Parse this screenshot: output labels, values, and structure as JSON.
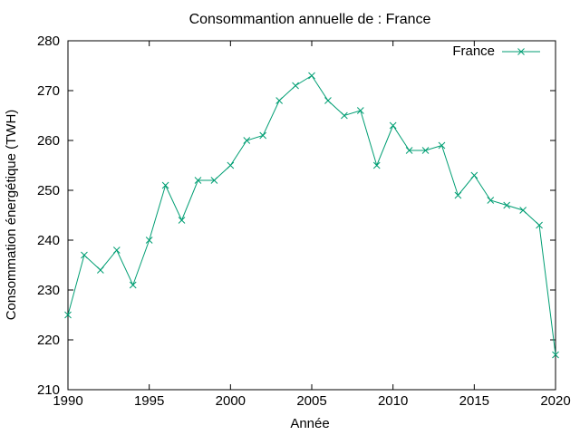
{
  "chart_data": {
    "type": "line",
    "title": "Consommantion annuelle de : France",
    "xlabel": "Année",
    "ylabel": "Consommation énergétique (TWH)",
    "xlim": [
      1990,
      2020
    ],
    "ylim": [
      210,
      280
    ],
    "xticks": [
      1990,
      1995,
      2000,
      2005,
      2010,
      2015,
      2020
    ],
    "yticks": [
      210,
      220,
      230,
      240,
      250,
      260,
      270,
      280
    ],
    "grid": false,
    "legend_position": "top-right",
    "series": [
      {
        "name": "France",
        "color": "#009e73",
        "marker": "x",
        "x": [
          1990,
          1991,
          1992,
          1993,
          1994,
          1995,
          1996,
          1997,
          1998,
          1999,
          2000,
          2001,
          2002,
          2003,
          2004,
          2005,
          2006,
          2007,
          2008,
          2009,
          2010,
          2011,
          2012,
          2013,
          2014,
          2015,
          2016,
          2017,
          2018,
          2019,
          2020
        ],
        "y": [
          225,
          237,
          234,
          238,
          231,
          240,
          251,
          244,
          252,
          252,
          255,
          260,
          261,
          268,
          271,
          273,
          268,
          265,
          266,
          255,
          263,
          258,
          258,
          259,
          249,
          253,
          248,
          247,
          246,
          243,
          217
        ]
      }
    ]
  }
}
